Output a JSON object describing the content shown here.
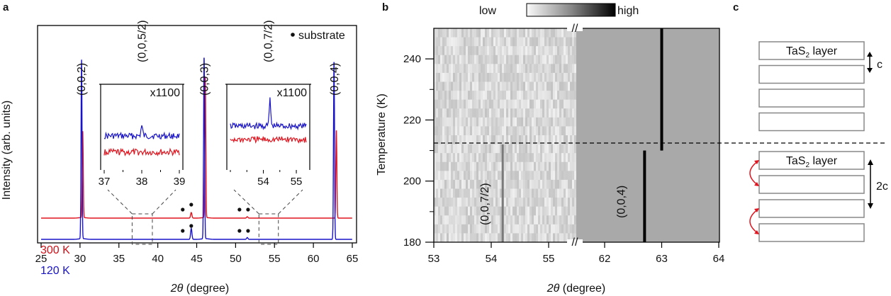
{
  "chart_data": [
    {
      "panel": "a",
      "type": "line",
      "title": "",
      "xlabel": "2θ (degree)",
      "xlabel_italic": "2θ",
      "xlabel_rest": " (degree)",
      "ylabel": "Intensity (arb. units)",
      "xlim": [
        25,
        65
      ],
      "xticks": [
        25,
        30,
        35,
        40,
        45,
        50,
        55,
        60,
        65
      ],
      "legend": {
        "marker": "•",
        "text": "substrate",
        "position": "top-right"
      },
      "peak_labels": [
        {
          "text": "(0,0,2)",
          "x": 30.2
        },
        {
          "text": "(0,0,5/2)",
          "x": 38.0
        },
        {
          "text": "(0,0,3)",
          "x": 46.0
        },
        {
          "text": "(0,0,7/2)",
          "x": 54.2
        },
        {
          "text": "(0,0,4)",
          "x": 62.7
        }
      ],
      "series": [
        {
          "name": "300 K",
          "color": "#e0141e",
          "peaks": [
            {
              "x": 30.35,
              "rel_height": 0.62
            },
            {
              "x": 44.3,
              "rel_height": 0.04
            },
            {
              "x": 46.1,
              "rel_height": 1.0
            },
            {
              "x": 51.5,
              "rel_height": 0.01
            },
            {
              "x": 62.95,
              "rel_height": 0.63
            }
          ]
        },
        {
          "name": "120 K",
          "color": "#1a14c8",
          "peaks": [
            {
              "x": 30.2,
              "rel_height": 0.98
            },
            {
              "x": 44.3,
              "rel_height": 0.06
            },
            {
              "x": 45.95,
              "rel_height": 1.0
            },
            {
              "x": 51.5,
              "rel_height": 0.01
            },
            {
              "x": 62.65,
              "rel_height": 0.98
            }
          ]
        }
      ],
      "substrate_markers_x": [
        43.2,
        44.3,
        50.5,
        51.6
      ],
      "insets": [
        {
          "scale_label": "x1100",
          "xlim": [
            37,
            39
          ],
          "xticks": [
            37,
            38,
            39
          ],
          "zoom_range": [
            36.7,
            39.3
          ],
          "peak_x": 38.0,
          "peak_series": "120 K"
        },
        {
          "scale_label": "x1100",
          "xlim": [
            53,
            55.3
          ],
          "xticks": [
            54,
            55
          ],
          "zoom_range": [
            53,
            55.5
          ],
          "peak_x": 54.2,
          "peak_series": "120 K"
        }
      ]
    },
    {
      "panel": "b",
      "type": "heatmap",
      "xlabel": "2θ (degree)",
      "xlabel_italic": "2θ",
      "xlabel_rest": " (degree)",
      "ylabel": "Temperature (K)",
      "ylim": [
        180,
        250
      ],
      "yticks": [
        180,
        200,
        220,
        240
      ],
      "x_segments": [
        {
          "xlim": [
            53,
            55.5
          ],
          "xticks": [
            53,
            54,
            55
          ]
        },
        {
          "xlim": [
            61.5,
            64
          ],
          "xticks": [
            62,
            63,
            64
          ]
        }
      ],
      "axis_break": "//",
      "colorbar": {
        "low_label": "low",
        "high_label": "high"
      },
      "transition_temperature": 212,
      "features": [
        {
          "label": "(0,0,7/2)",
          "x": 54.2,
          "t_range": [
            180,
            212
          ],
          "intensity": "weak"
        },
        {
          "label": "(0,0,4)",
          "x": 62.7,
          "t_range": [
            180,
            210
          ],
          "intensity": "strong"
        },
        {
          "label": "",
          "x": 63.0,
          "t_range": [
            210,
            250
          ],
          "intensity": "strong"
        }
      ]
    }
  ],
  "panel_c": {
    "label": "c",
    "top_stack": {
      "layer_label": "TaS",
      "layer_sub": "2",
      "layer_suffix": " layer",
      "layers": 4,
      "spacing_label": "c"
    },
    "bottom_stack": {
      "layer_label": "TaS",
      "layer_sub": "2",
      "layer_suffix": " layer",
      "layers": 4,
      "spacing_label": "2c"
    },
    "arrow_color": "#e0141e"
  },
  "panel_labels": {
    "a": "a",
    "b": "b",
    "c": "c"
  }
}
